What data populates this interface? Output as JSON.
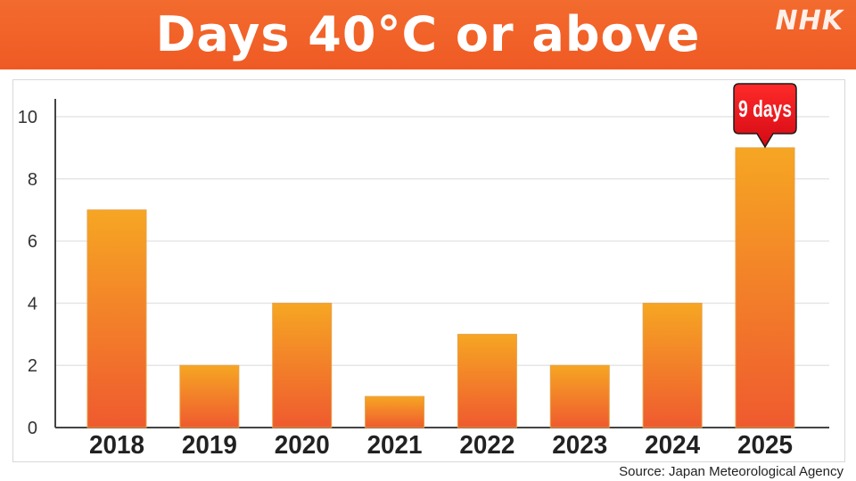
{
  "header": {
    "title": "Days 40°C or above",
    "logo": "NHK"
  },
  "footer": {
    "source": "Source: Japan Meteorological Agency"
  },
  "colors": {
    "header_bg": "#ef5a24",
    "bar_top": "#f6a623",
    "bar_bottom": "#ef5a2f",
    "callout_bg": "#e8101e",
    "grid": "#e6e6e6",
    "axis": "#444444"
  },
  "chart_data": {
    "type": "bar",
    "categories": [
      "2018",
      "2019",
      "2020",
      "2021",
      "2022",
      "2023",
      "2024",
      "2025"
    ],
    "values": [
      7,
      2,
      4,
      1,
      3,
      2,
      4,
      9
    ],
    "xlabel": "",
    "ylabel": "",
    "ylim": [
      0,
      10
    ],
    "yticks": [
      0,
      2,
      4,
      6,
      8,
      10
    ],
    "grid": true,
    "annotation": {
      "category": "2025",
      "text": "9 days"
    }
  }
}
